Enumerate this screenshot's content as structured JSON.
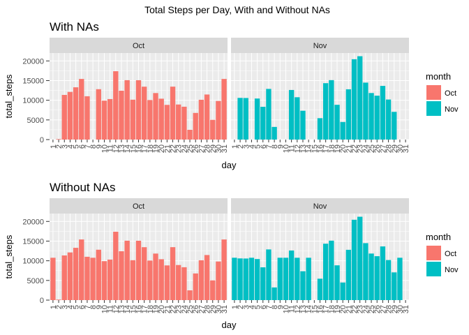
{
  "title": "Total Steps per Day, With and Without NAs",
  "legend": {
    "title": "month",
    "items": [
      {
        "label": "Oct",
        "color": "#F8766D"
      },
      {
        "label": "Nov",
        "color": "#00BFC4"
      }
    ]
  },
  "colors": {
    "panel_bg": "#EBEBEB",
    "grid": "#FFFFFF",
    "strip_bg": "#D9D9D9"
  },
  "chart_data": [
    {
      "type": "bar",
      "title": "With NAs",
      "xlabel": "day",
      "ylabel": "total_steps",
      "ylim": [
        0,
        22000
      ],
      "yticks": [
        0,
        5000,
        10000,
        15000,
        20000
      ],
      "facets": [
        "Oct",
        "Nov"
      ],
      "x_ticks": [
        "1",
        "2",
        "3",
        "4",
        "5",
        "6",
        "7",
        "8",
        "9",
        "10",
        "11",
        "12",
        "13",
        "14",
        "15",
        "16",
        "17",
        "18",
        "19",
        "20",
        "21",
        "22",
        "23",
        "24",
        "25",
        "26",
        "27",
        "28",
        "29",
        "30",
        "31"
      ],
      "grid": true,
      "legend_position": "right",
      "series": [
        {
          "name": "Oct",
          "x": [
            1,
            2,
            3,
            4,
            5,
            6,
            7,
            8,
            9,
            10,
            11,
            12,
            13,
            14,
            15,
            16,
            17,
            18,
            19,
            20,
            21,
            22,
            23,
            24,
            25,
            26,
            27,
            28,
            29,
            30,
            31
          ],
          "values": [
            0,
            126,
            11352,
            12116,
            13294,
            15420,
            11015,
            null,
            12811,
            9900,
            10304,
            17382,
            12426,
            15098,
            10139,
            15084,
            13452,
            10056,
            11829,
            10395,
            8821,
            13460,
            8918,
            8355,
            2492,
            6778,
            10119,
            11458,
            5018,
            9819,
            15414
          ]
        },
        {
          "name": "Nov",
          "x": [
            1,
            2,
            3,
            4,
            5,
            6,
            7,
            8,
            9,
            10,
            11,
            12,
            13,
            14,
            15,
            16,
            17,
            18,
            19,
            20,
            21,
            22,
            23,
            24,
            25,
            26,
            27,
            28,
            29,
            30,
            31
          ],
          "values": [
            0,
            10600,
            10571,
            0,
            10439,
            8334,
            12883,
            3219,
            0,
            0,
            12608,
            10765,
            7336,
            0,
            0,
            5441,
            14339,
            15110,
            8841,
            4472,
            12787,
            20427,
            21194,
            14478,
            11834,
            11162,
            13646,
            10183,
            7047,
            0,
            0
          ]
        }
      ]
    },
    {
      "type": "bar",
      "title": "Without NAs",
      "xlabel": "day",
      "ylabel": "total_steps",
      "ylim": [
        0,
        22000
      ],
      "yticks": [
        0,
        5000,
        10000,
        15000,
        20000
      ],
      "facets": [
        "Oct",
        "Nov"
      ],
      "x_ticks": [
        "1",
        "2",
        "3",
        "4",
        "5",
        "6",
        "7",
        "8",
        "9",
        "10",
        "11",
        "12",
        "13",
        "14",
        "15",
        "16",
        "17",
        "18",
        "19",
        "20",
        "21",
        "22",
        "23",
        "24",
        "25",
        "26",
        "27",
        "28",
        "29",
        "30",
        "31"
      ],
      "grid": true,
      "legend_position": "right",
      "series": [
        {
          "name": "Oct",
          "x": [
            1,
            2,
            3,
            4,
            5,
            6,
            7,
            8,
            9,
            10,
            11,
            12,
            13,
            14,
            15,
            16,
            17,
            18,
            19,
            20,
            21,
            22,
            23,
            24,
            25,
            26,
            27,
            28,
            29,
            30,
            31
          ],
          "values": [
            10766,
            126,
            11352,
            12116,
            13294,
            15420,
            11015,
            10766,
            12811,
            9900,
            10304,
            17382,
            12426,
            15098,
            10139,
            15084,
            13452,
            10056,
            11829,
            10395,
            8821,
            13460,
            8918,
            8355,
            2492,
            6778,
            10119,
            11458,
            5018,
            9819,
            15414
          ]
        },
        {
          "name": "Nov",
          "x": [
            1,
            2,
            3,
            4,
            5,
            6,
            7,
            8,
            9,
            10,
            11,
            12,
            13,
            14,
            15,
            16,
            17,
            18,
            19,
            20,
            21,
            22,
            23,
            24,
            25,
            26,
            27,
            28,
            29,
            30,
            31
          ],
          "values": [
            10766,
            10600,
            10571,
            10766,
            10439,
            8334,
            12883,
            3219,
            10766,
            10766,
            12608,
            10765,
            7336,
            10766,
            0,
            5441,
            14339,
            15110,
            8841,
            4472,
            12787,
            20427,
            21194,
            14478,
            11834,
            11162,
            13646,
            10183,
            7047,
            10766,
            null
          ]
        }
      ]
    }
  ]
}
